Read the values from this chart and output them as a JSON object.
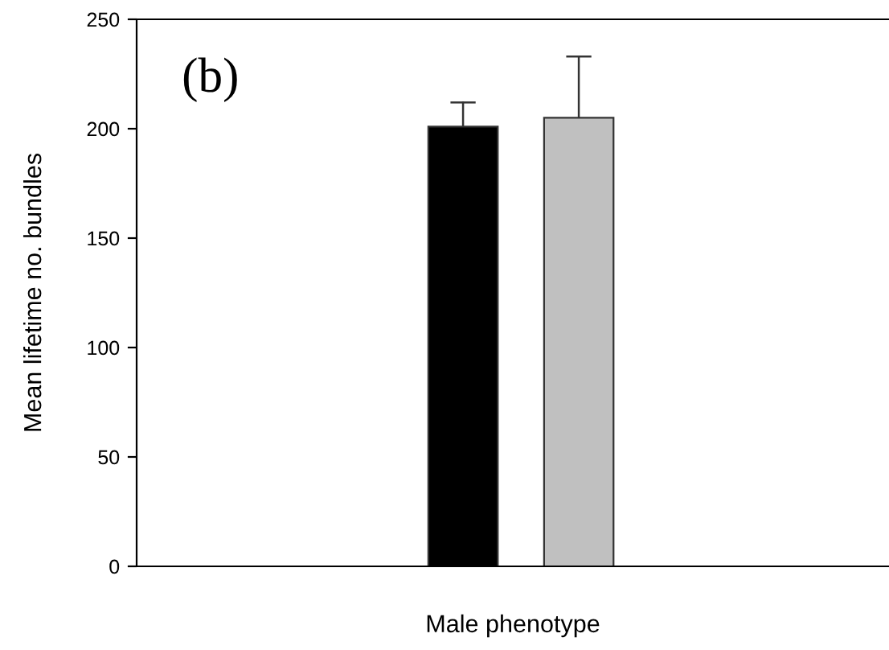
{
  "chart_data": {
    "type": "bar",
    "xlabel": "Male phenotype",
    "ylabel": "Mean lifetime no. bundles",
    "annotations": [
      "(b)"
    ],
    "categories": [
      null,
      null
    ],
    "values": [
      201,
      205
    ],
    "colors": [
      "#000000",
      "#c0c0c0"
    ],
    "errors": [
      11,
      28
    ],
    "ylim": [
      0,
      250
    ],
    "yticks": [
      0,
      50,
      100,
      150,
      200,
      250
    ],
    "grid": false,
    "legend": false
  }
}
